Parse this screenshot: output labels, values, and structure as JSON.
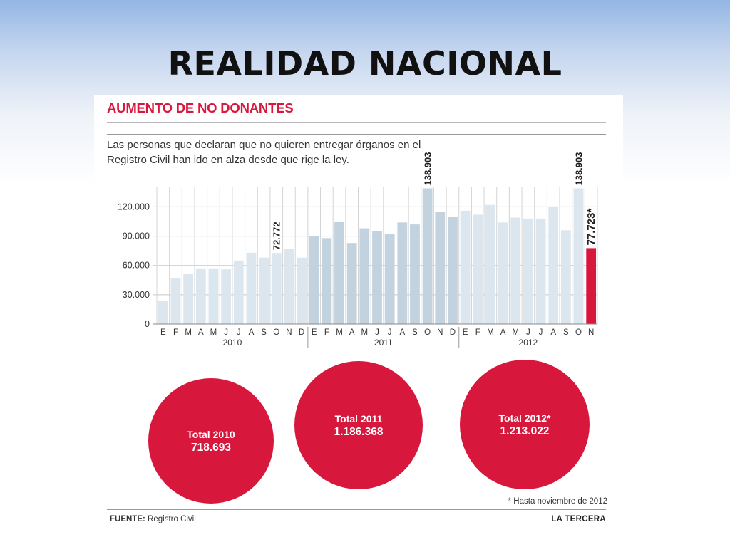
{
  "slide": {
    "title": "REALIDAD NACIONAL"
  },
  "infographic": {
    "title": "AUMENTO DE NO DONANTES",
    "subtitle_line1": "Las personas que declaran que no quieren entregar órganos en el",
    "subtitle_line2": "Registro Civil han ido en alza desde que rige la ley.",
    "footnote": "* Hasta noviembre de 2012",
    "source_label": "FUENTE:",
    "source_value": "Registro Civil",
    "brand": "LA TERCERA"
  },
  "totals": [
    {
      "label": "Total 2010",
      "value": "718.693"
    },
    {
      "label": "Total 2011",
      "value": "1.186.368"
    },
    {
      "label": "Total 2012*",
      "value": "1.213.022"
    }
  ],
  "colors": {
    "bar_2010": "#dce6ee",
    "bar_2011": "#c2d2de",
    "bar_2012": "#dce6ee",
    "bar_highlight": "#d8173c",
    "accent": "#d8173c"
  },
  "chart_data": {
    "type": "bar",
    "ylim": [
      0,
      140000
    ],
    "yticks": [
      0,
      30000,
      60000,
      90000,
      120000
    ],
    "ytick_labels": [
      "0",
      "30.000",
      "60.000",
      "90.000",
      "120.000"
    ],
    "grid": true,
    "groups": [
      {
        "year": "2010",
        "months": [
          "E",
          "F",
          "M",
          "A",
          "M",
          "J",
          "J",
          "A",
          "S",
          "O",
          "N",
          "D"
        ],
        "values": [
          24000,
          47000,
          51000,
          57000,
          57000,
          56000,
          65000,
          73000,
          68000,
          72772,
          77000,
          68000
        ]
      },
      {
        "year": "2011",
        "months": [
          "E",
          "F",
          "M",
          "A",
          "M",
          "J",
          "J",
          "A",
          "S",
          "O",
          "N",
          "D"
        ],
        "values": [
          90000,
          88000,
          105000,
          83000,
          98000,
          95000,
          92000,
          104000,
          102000,
          138903,
          115000,
          110000
        ]
      },
      {
        "year": "2012",
        "months": [
          "E",
          "F",
          "M",
          "A",
          "M",
          "J",
          "J",
          "A",
          "S",
          "O",
          "N"
        ],
        "values": [
          116000,
          112000,
          122000,
          104000,
          109000,
          108000,
          108000,
          120000,
          96000,
          138903,
          77723
        ]
      }
    ],
    "value_labels": [
      {
        "group": 0,
        "index": 9,
        "text": "72.772"
      },
      {
        "group": 1,
        "index": 9,
        "text": "138.903"
      },
      {
        "group": 2,
        "index": 9,
        "text": "138.903"
      },
      {
        "group": 2,
        "index": 10,
        "text": "77.723*"
      }
    ],
    "highlight": {
      "group": 2,
      "index": 10
    }
  }
}
